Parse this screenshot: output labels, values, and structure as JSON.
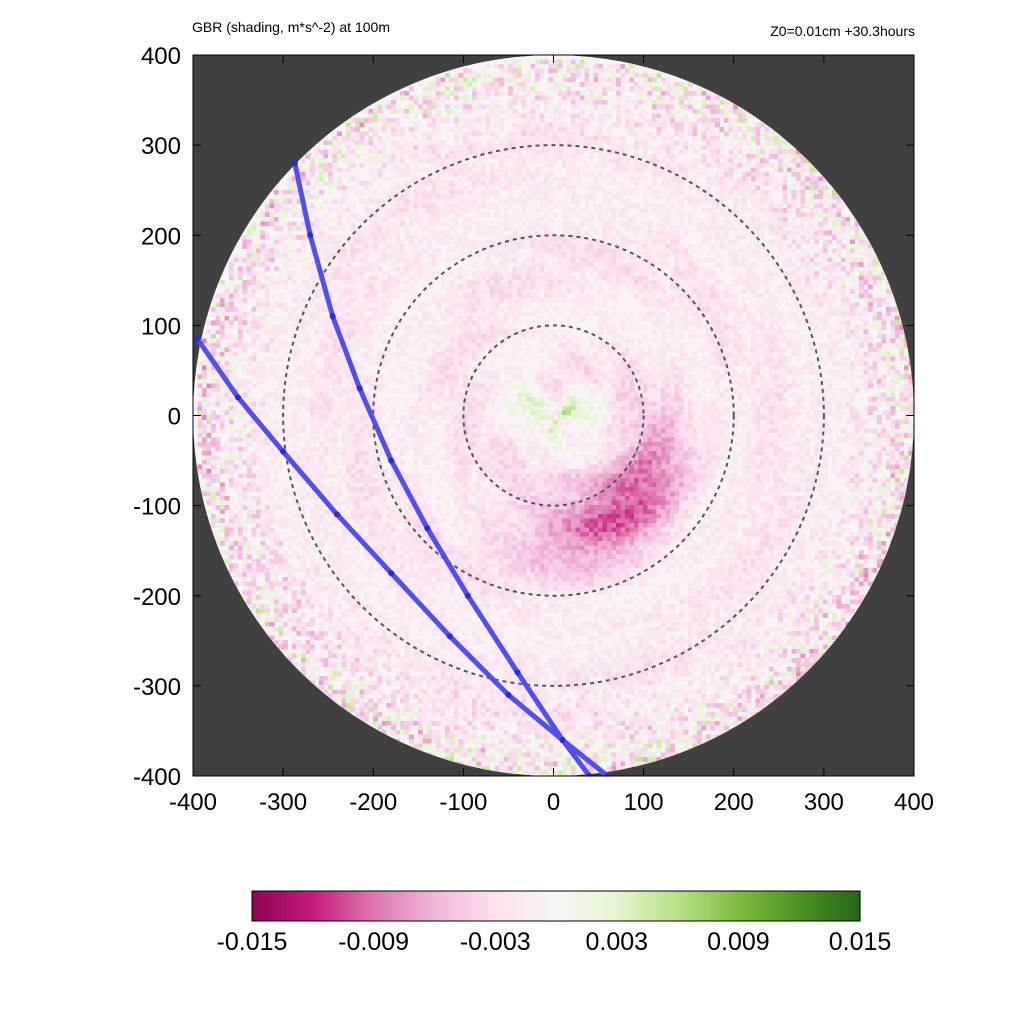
{
  "title": "GBR (shading, m*s^-2) at 100m",
  "annotation": "Z0=0.01cm  +30.3hours",
  "chart_data": {
    "type": "heatmap",
    "title": "GBR (shading, m*s^-2) at 100m",
    "annotation": "Z0=0.01cm  +30.3hours",
    "xlim": [
      -400,
      400
    ],
    "ylim": [
      -400,
      400
    ],
    "x_ticks": [
      "-400",
      "-300",
      "-200",
      "-100",
      "0",
      "100",
      "200",
      "300",
      "400"
    ],
    "y_ticks": [
      "400",
      "300",
      "200",
      "100",
      "0",
      "-100",
      "-200",
      "-300",
      "-400"
    ],
    "domain_radius": 400,
    "background_color": "#404040",
    "dashed_circles_radii": [
      100,
      200,
      300
    ],
    "colorbar": {
      "range": [
        -0.015,
        0.015
      ],
      "tick_labels": [
        "-0.015",
        "-0.009",
        "-0.003",
        "0.003",
        "0.009",
        "0.015"
      ],
      "colors": [
        "#8e0152",
        "#c51b7d",
        "#de77ae",
        "#f1b6da",
        "#fde0ef",
        "#f7f7f7",
        "#e6f5d0",
        "#b8e186",
        "#7fbc41",
        "#4d9221",
        "#276419"
      ]
    },
    "tracks": [
      {
        "color": "#5050f0",
        "points": [
          [
            -287,
            280
          ],
          [
            -270,
            200
          ],
          [
            -245,
            110
          ],
          [
            -215,
            30
          ],
          [
            -180,
            -50
          ],
          [
            -140,
            -125
          ],
          [
            -95,
            -200
          ],
          [
            -40,
            -285
          ],
          [
            10,
            -360
          ],
          [
            40,
            -400
          ]
        ]
      },
      {
        "color": "#5050f0",
        "points": [
          [
            -395,
            85
          ],
          [
            -350,
            20
          ],
          [
            -300,
            -40
          ],
          [
            -240,
            -110
          ],
          [
            -180,
            -175
          ],
          [
            -115,
            -245
          ],
          [
            -50,
            -310
          ],
          [
            10,
            -360
          ],
          [
            60,
            -400
          ]
        ]
      }
    ]
  }
}
